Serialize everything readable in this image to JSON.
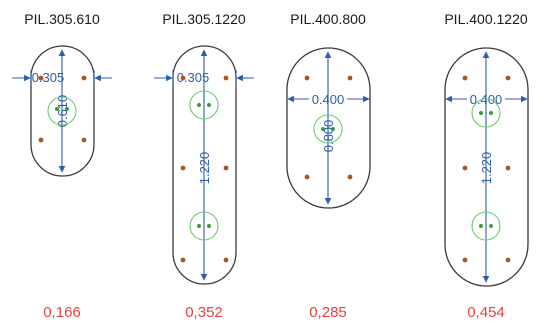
{
  "colors": {
    "outline": "#3a3a3a",
    "dimension": "#2c5ea8",
    "reinforcement_dot": "#b0541c",
    "core_ring": "#6ec86e",
    "core_dot": "#33a033",
    "value_text": "#e84040"
  },
  "piles": [
    {
      "title": "PIL.305.610",
      "width_label": "0.305",
      "length_label": "0.610",
      "value": "0,166"
    },
    {
      "title": "PIL.305.1220",
      "width_label": "0.305",
      "length_label": "1.220",
      "value": "0,352"
    },
    {
      "title": "PIL.400.800",
      "width_label": "0.400",
      "length_label": "0.800",
      "value": "0,285"
    },
    {
      "title": "PIL.400.1220",
      "width_label": "0.400",
      "length_label": "1.220",
      "value": "0,454"
    }
  ]
}
